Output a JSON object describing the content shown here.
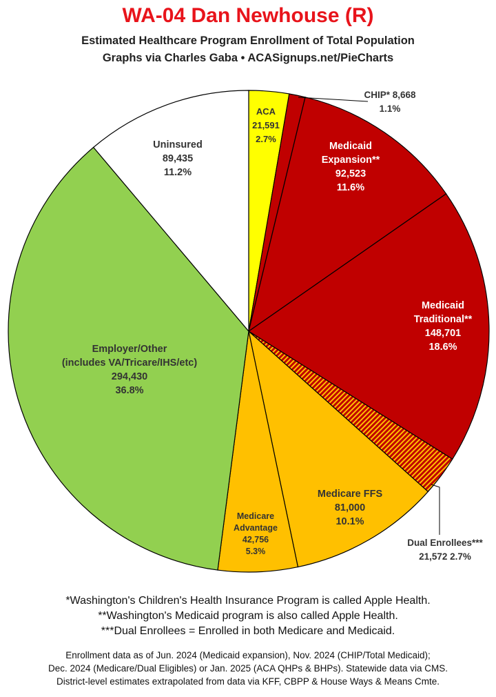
{
  "header": {
    "title": "WA-04 Dan Newhouse (R)",
    "subtitle_1": "Estimated Healthcare Program Enrollment of Total Population",
    "subtitle_2": "Graphs via Charles Gaba  •  ACASignups.net/PieCharts"
  },
  "chart_data": {
    "type": "pie",
    "title": "WA-04 Dan Newhouse (R)",
    "slices": [
      {
        "name": "ACA",
        "value": 21591,
        "value_label": "21,591",
        "percent": "2.7%",
        "color": "#ffff00",
        "pattern": false,
        "label_color": "#333333"
      },
      {
        "name": "CHIP*",
        "value": 8668,
        "value_label": "8,668",
        "percent": "1.1%",
        "color": "#c00000",
        "pattern": false,
        "label_color": "#333333"
      },
      {
        "name": "Medicaid Expansion**",
        "value": 92523,
        "value_label": "92,523",
        "percent": "11.6%",
        "color": "#c00000",
        "pattern": false,
        "label_color": "#ffffff"
      },
      {
        "name": "Medicaid Traditional**",
        "value": 148701,
        "value_label": "148,701",
        "percent": "18.6%",
        "color": "#c00000",
        "pattern": false,
        "label_color": "#ffffff"
      },
      {
        "name": "Dual Enrollees***",
        "value": 21572,
        "value_label": "21,572",
        "percent": "2.7%",
        "color": "#c00000",
        "pattern": true,
        "label_color": "#333333"
      },
      {
        "name": "Medicare FFS",
        "value": 81000,
        "value_label": "81,000",
        "percent": "10.1%",
        "color": "#ffc000",
        "pattern": false,
        "label_color": "#333333"
      },
      {
        "name": "Medicare Advantage",
        "value": 42756,
        "value_label": "42,756",
        "percent": "5.3%",
        "color": "#ffc000",
        "pattern": false,
        "label_color": "#333333"
      },
      {
        "name": "Employer/Other (includes VA/Tricare/IHS/etc)",
        "value": 294430,
        "value_label": "294,430",
        "percent": "36.8%",
        "color": "#92d050",
        "pattern": false,
        "label_color": "#333333"
      },
      {
        "name": "Uninsured",
        "value": 89435,
        "value_label": "89,435",
        "percent": "11.2%",
        "color": "#ffffff",
        "pattern": false,
        "label_color": "#333333"
      }
    ],
    "labels": [
      {
        "lines": [
          "ACA",
          "21,591",
          "2.7%"
        ]
      },
      {
        "lines": [
          "CHIP* 8,668",
          "1.1%"
        ]
      },
      {
        "lines": [
          "Medicaid",
          "Expansion**",
          "92,523",
          "11.6%"
        ]
      },
      {
        "lines": [
          "Medicaid",
          "Traditional**",
          "148,701",
          "18.6%"
        ]
      },
      {
        "lines": [
          "Dual Enrollees***",
          "21,572 2.7%"
        ]
      },
      {
        "lines": [
          "Medicare FFS",
          "81,000",
          "10.1%"
        ]
      },
      {
        "lines": [
          "Medicare",
          "Advantage",
          "42,756",
          "5.3%"
        ]
      },
      {
        "lines": [
          "Employer/Other",
          "(includes VA/Tricare/IHS/etc)",
          "294,430",
          "36.8%"
        ]
      },
      {
        "lines": [
          "Uninsured",
          "89,435",
          "11.2%"
        ]
      }
    ]
  },
  "footnotes": {
    "note1": "*Washington's Children's Health Insurance Program is called Apple Health.",
    "note2": "**Washington's Medicaid program is also called Apple Health.",
    "note3": "***Dual Enrollees = Enrolled in both Medicare and Medicaid.",
    "source1": "Enrollment data as of Jun. 2024 (Medicaid expansion), Nov. 2024 (CHIP/Total Medicaid);",
    "source2": "Dec. 2024 (Medicare/Dual Eligibles) or Jan. 2025 (ACA QHPs & BHPs). Statewide data via CMS.",
    "source3": "District-level estimates extrapolated from data via KFF, CBPP & House Ways & Means Cmte."
  }
}
